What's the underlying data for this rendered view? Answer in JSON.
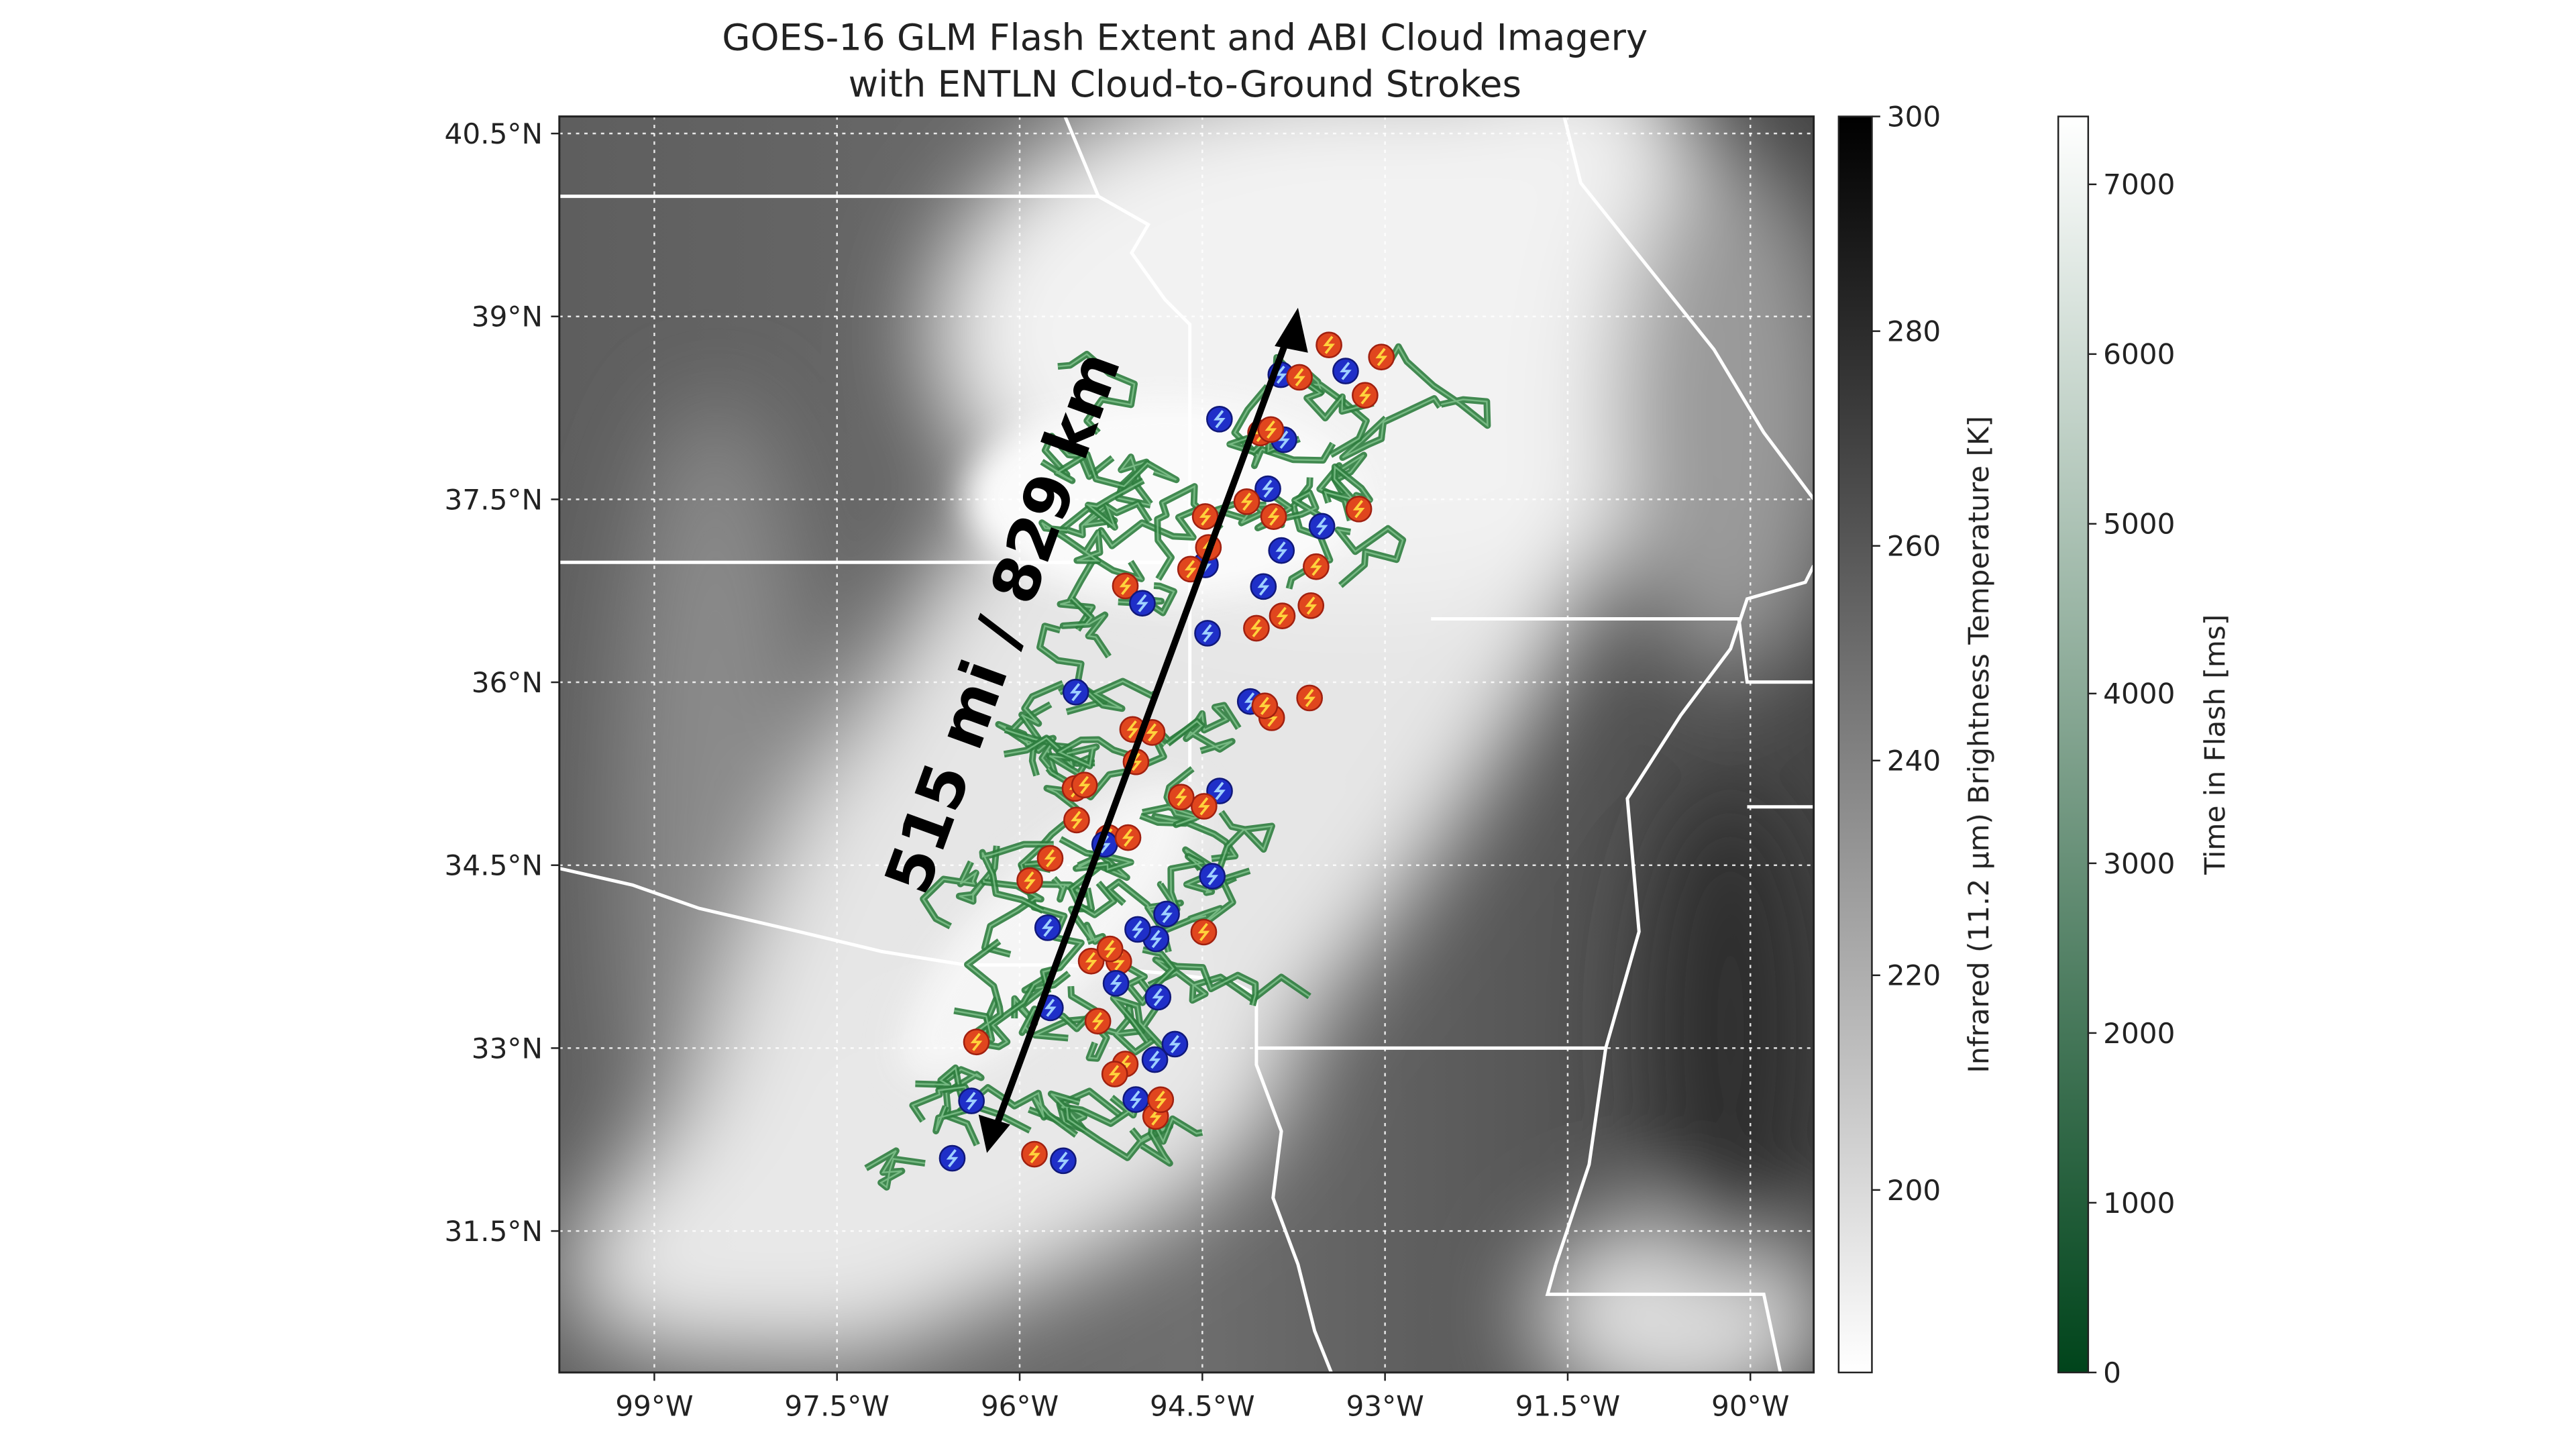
{
  "chart_data": {
    "type": "map",
    "title": "GOES-16 GLM Flash Extent and ABI Cloud Imagery",
    "subtitle": "with ENTLN Cloud-to-Ground Strokes",
    "xlim": [
      -99.78,
      -89.48
    ],
    "xticks": [
      {
        "value": -99,
        "label": "99°W"
      },
      {
        "value": -97.5,
        "label": "97.5°W"
      },
      {
        "value": -96,
        "label": "96°W"
      },
      {
        "value": -94.5,
        "label": "94.5°W"
      },
      {
        "value": -93,
        "label": "93°W"
      },
      {
        "value": -91.5,
        "label": "91.5°W"
      },
      {
        "value": -90,
        "label": "90°W"
      }
    ],
    "ylim": [
      30.34,
      40.64
    ],
    "yticks": [
      {
        "value": 31.5,
        "label": "31.5°N"
      },
      {
        "value": 33,
        "label": "33°N"
      },
      {
        "value": 34.5,
        "label": "34.5°N"
      },
      {
        "value": 36,
        "label": "36°N"
      },
      {
        "value": 37.5,
        "label": "37.5°N"
      },
      {
        "value": 39,
        "label": "39°N"
      },
      {
        "value": 40.5,
        "label": "40.5°N"
      }
    ],
    "grid": true,
    "annotation": "515 mi / 829 km",
    "colorbars": [
      {
        "label": "Infrared (11.2 μm) Brightness Temperature [K]",
        "ylim": [
          183,
          300
        ],
        "yticks": [
          200,
          220,
          240,
          260,
          280,
          300
        ],
        "colors": [
          "#ffffff",
          "#000000"
        ]
      },
      {
        "label": "Time in Flash [ms]",
        "ylim": [
          0,
          7400
        ],
        "yticks": [
          0,
          1000,
          2000,
          3000,
          4000,
          5000,
          6000,
          7000
        ],
        "colors": [
          "#00441b",
          "#ffffff"
        ]
      }
    ]
  }
}
